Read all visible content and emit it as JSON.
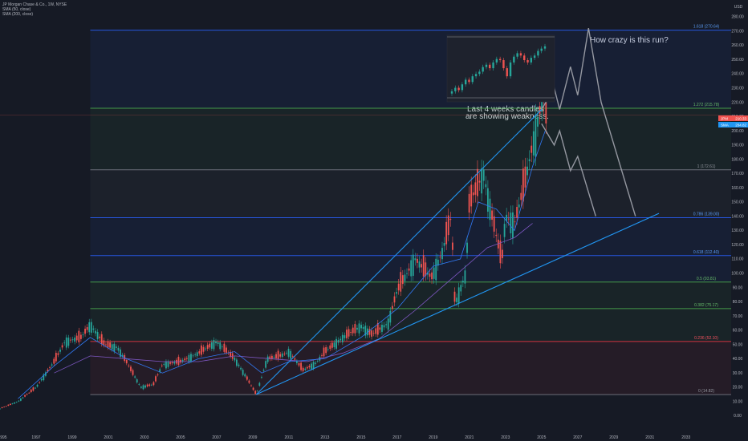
{
  "header": {
    "symbol_line": "JP Morgan Chase & Co., 1W, NYSE",
    "sma_fast": "SMA (50, close)",
    "sma_slow": "SMA (200, close)",
    "currency": "USD"
  },
  "annotations": {
    "question": "How crazy is this run?",
    "note_line1": "Last 4 weeks candles",
    "note_line2": "are showing weakness."
  },
  "price_tags": {
    "last_label": "JPM",
    "last_value": "210.33",
    "sma_label": "SMA",
    "sma_value": "204.82"
  },
  "colors": {
    "background": "#161a25",
    "up": "#26a69a",
    "down": "#ef5350",
    "trendline": "#2196f3",
    "fib_blue": "#2962ff",
    "fib_green": "#4caf50",
    "fib_red": "#f23645",
    "fib_gray": "#787b86",
    "sma_fast": "#3179f5",
    "sma_slow": "#7e57c2",
    "projection": "#9598a1"
  },
  "chart_data": {
    "type": "candlestick",
    "title": "JP Morgan Chase & Co., 1W, NYSE",
    "ylim": [
      0,
      290
    ],
    "xlim": [
      1995,
      2035.5
    ],
    "y_scale": "linear",
    "grid": false,
    "legend": "top-left",
    "x_ticks": [
      "1995",
      "1997",
      "1999",
      "2001",
      "2003",
      "2005",
      "2007",
      "2009",
      "2011",
      "2013",
      "2015",
      "2017",
      "2019",
      "2021",
      "2023",
      "2025",
      "2027",
      "2029",
      "2031",
      "2033"
    ],
    "y_ticks": [
      0,
      10,
      20,
      30,
      40,
      50,
      60,
      70,
      80,
      90,
      100,
      110,
      120,
      130,
      140,
      150,
      160,
      170,
      180,
      190,
      200,
      210,
      220,
      230,
      240,
      250,
      260,
      270,
      280
    ],
    "price_series": {
      "x": [
        1995.0,
        1996.0,
        1997.0,
        1998.0,
        1998.6,
        1999.5,
        2000.0,
        2000.8,
        2001.5,
        2002.0,
        2002.8,
        2003.5,
        2004.0,
        2005.0,
        2006.0,
        2007.0,
        2007.5,
        2008.0,
        2008.6,
        2009.2,
        2009.8,
        2010.5,
        2011.0,
        2011.8,
        2012.5,
        2013.0,
        2014.0,
        2015.0,
        2015.6,
        2016.5,
        2017.0,
        2018.0,
        2018.9,
        2019.5,
        2020.0,
        2020.2,
        2020.8,
        2021.0,
        2021.8,
        2022.0,
        2022.8,
        2023.0,
        2023.5,
        2024.0,
        2024.5,
        2024.8,
        2025.0,
        2025.3
      ],
      "y": [
        5,
        10,
        20,
        38,
        52,
        55,
        64,
        50,
        48,
        38,
        20,
        22,
        36,
        38,
        44,
        52,
        46,
        40,
        28,
        15,
        40,
        42,
        45,
        32,
        37,
        45,
        55,
        63,
        57,
        65,
        88,
        110,
        97,
        115,
        140,
        78,
        100,
        150,
        170,
        155,
        108,
        140,
        135,
        160,
        190,
        208,
        220,
        215
      ]
    },
    "sma_50": {
      "name": "SMA (50, close)",
      "x": [
        1996.0,
        1998.0,
        2000.0,
        2002.0,
        2004.0,
        2006.0,
        2008.0,
        2009.5,
        2011.0,
        2013.0,
        2015.0,
        2017.0,
        2019.0,
        2020.5,
        2021.5,
        2022.5,
        2023.5,
        2024.5,
        2025.2
      ],
      "y": [
        12,
        35,
        55,
        40,
        30,
        40,
        45,
        30,
        38,
        40,
        55,
        75,
        105,
        110,
        150,
        145,
        130,
        175,
        200
      ]
    },
    "sma_200": {
      "name": "SMA (200, close)",
      "x": [
        1998.0,
        2000.0,
        2002.0,
        2004.0,
        2006.0,
        2008.0,
        2010.0,
        2012.0,
        2014.0,
        2016.0,
        2018.0,
        2020.0,
        2022.0,
        2023.5,
        2024.5
      ],
      "y": [
        30,
        42,
        40,
        38,
        38,
        42,
        40,
        38,
        44,
        54,
        74,
        96,
        118,
        125,
        135
      ]
    },
    "fib_levels": [
      {
        "label": "1.618 (270.64)",
        "value": 270.64
      },
      {
        "label": "1.272 (215.78)",
        "value": 215.78
      },
      {
        "label": "1 (172.61)",
        "value": 172.61
      },
      {
        "label": "0.786 (139.00)",
        "value": 139.0
      },
      {
        "label": "0.618 (112.40)",
        "value": 112.4
      },
      {
        "label": "0.5 (93.81)",
        "value": 93.81
      },
      {
        "label": "0.382 (75.17)",
        "value": 75.17
      },
      {
        "label": "0.236 (52.10)",
        "value": 52.1
      },
      {
        "label": "0 (14.82)",
        "value": 14.82
      }
    ],
    "trendlines": [
      {
        "x": [
          2009.2,
          2025.0
        ],
        "y": [
          15,
          215
        ]
      },
      {
        "x": [
          2009.2,
          2031.5
        ],
        "y": [
          15,
          142
        ]
      }
    ],
    "projection_path": {
      "x": [
        2025.0,
        2025.7,
        2026.0,
        2026.6,
        2027.0,
        2027.6,
        2028.3,
        2030.2
      ],
      "y": [
        215,
        230,
        215,
        245,
        225,
        272,
        220,
        140
      ]
    },
    "projection_alt_path": {
      "x": [
        2025.0,
        2025.7,
        2026.0,
        2026.6,
        2027.0,
        2028.0
      ],
      "y": [
        205,
        190,
        200,
        172,
        182,
        140
      ]
    },
    "inset_candles": {
      "x": [
        0,
        1,
        2,
        3,
        4,
        5,
        6,
        7,
        8,
        9,
        10,
        11,
        12,
        13,
        14,
        15,
        16,
        17,
        18,
        19,
        20,
        21,
        22,
        23,
        24,
        25,
        26,
        27
      ],
      "y": [
        225,
        228,
        226,
        231,
        235,
        233,
        238,
        240,
        242,
        246,
        248,
        245,
        250,
        253,
        252,
        245,
        238,
        250,
        255,
        258,
        256,
        252,
        250,
        254,
        256,
        260,
        262,
        264
      ]
    }
  }
}
